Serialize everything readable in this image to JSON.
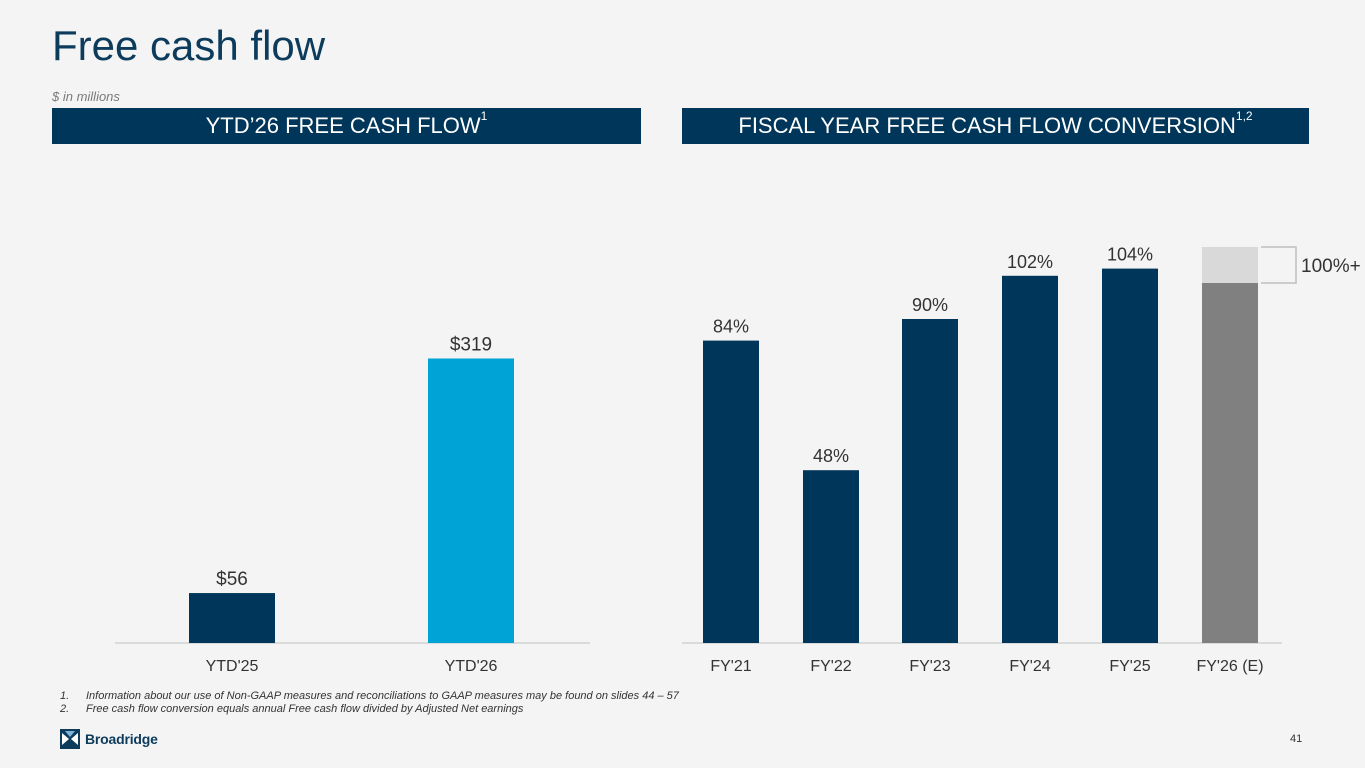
{
  "title": "Free cash flow",
  "units_note": "$ in millions",
  "left_banner": {
    "text": "YTD’26 FREE CASH FLOW",
    "sup": "1"
  },
  "right_banner": {
    "text": "FISCAL YEAR FREE CASH FLOW CONVERSION",
    "sup": "1,2"
  },
  "colors": {
    "navy": "#00365a",
    "light_blue": "#00a3d6",
    "estimate_gray": "#808080",
    "estimate_light": "#d9d9d9"
  },
  "chart_data": [
    {
      "type": "bar",
      "title": "YTD’26 FREE CASH FLOW",
      "categories": [
        "YTD'25",
        "YTD'26"
      ],
      "values": [
        56,
        319
      ],
      "data_labels": [
        "$56",
        "$319"
      ],
      "colors": [
        "#00365a",
        "#00a3d6"
      ],
      "ylim": [
        0,
        370
      ],
      "ylabel": "$ in millions",
      "grid": false
    },
    {
      "type": "bar",
      "title": "FISCAL YEAR FREE CASH FLOW CONVERSION",
      "categories": [
        "FY'21",
        "FY'22",
        "FY'23",
        "FY'24",
        "FY'25",
        "FY'26 (E)"
      ],
      "values": [
        84,
        48,
        90,
        102,
        104,
        100
      ],
      "data_labels": [
        "84%",
        "48%",
        "90%",
        "102%",
        "104%",
        ""
      ],
      "estimate_upside": 10,
      "estimate_label": "100%+",
      "ylim": [
        0,
        110
      ],
      "grid": false
    }
  ],
  "footnotes": [
    {
      "num": "1.",
      "text": "Information about our use of Non-GAAP measures and reconciliations to GAAP measures may be found on slides 44 – 57"
    },
    {
      "num": "2.",
      "text": "Free cash flow conversion equals annual Free cash flow divided by Adjusted Net earnings"
    }
  ],
  "logo_text": "Broadridge",
  "page_number": "41"
}
